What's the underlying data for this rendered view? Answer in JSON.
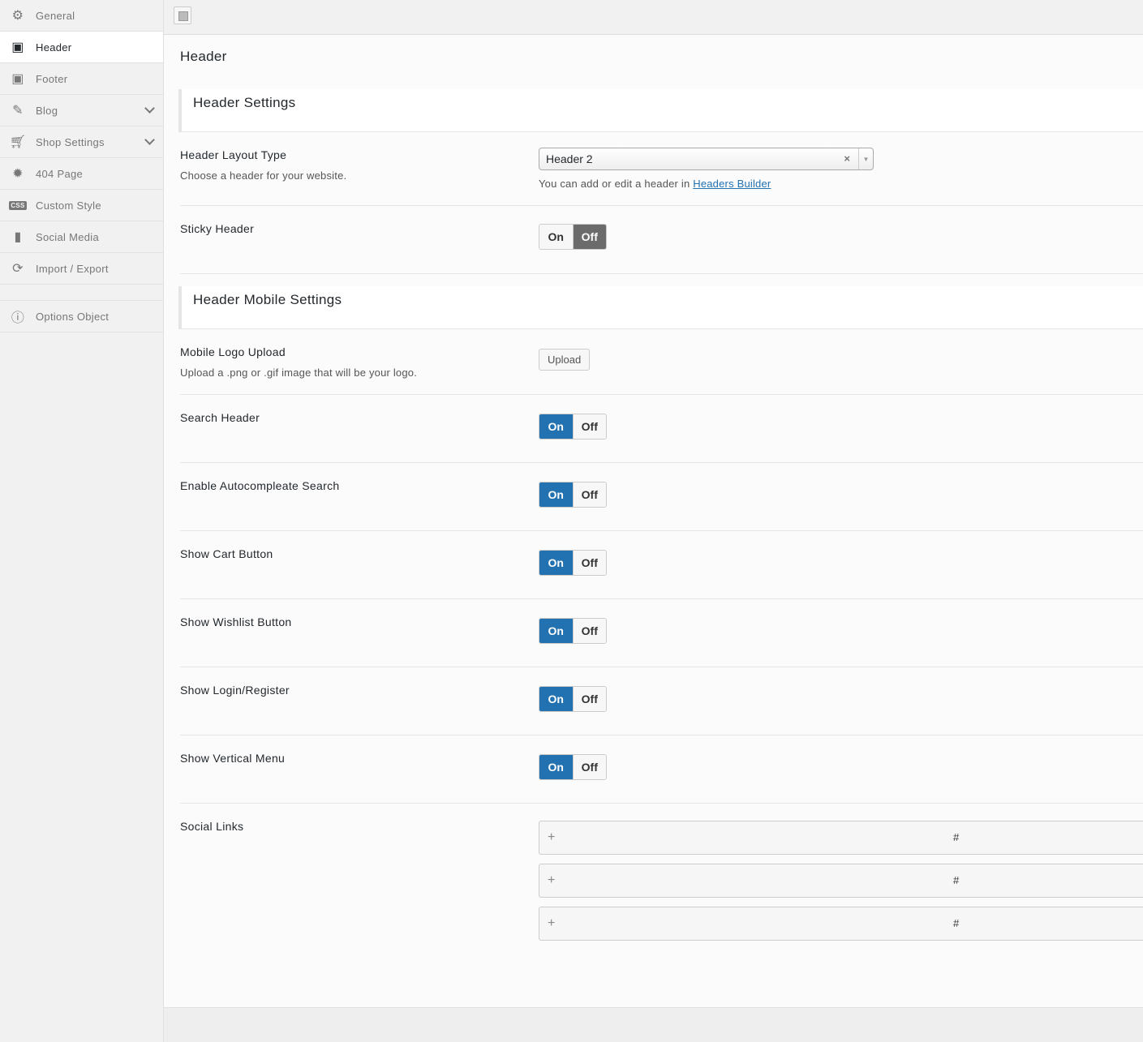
{
  "sidebar": {
    "items": [
      {
        "label": "General",
        "icon": "gears-icon"
      },
      {
        "label": "Header",
        "icon": "header-layout-icon",
        "active": true
      },
      {
        "label": "Footer",
        "icon": "footer-layout-icon"
      },
      {
        "label": "Blog",
        "icon": "pencil-icon",
        "expandable": true
      },
      {
        "label": "Shop Settings",
        "icon": "cart-icon",
        "expandable": true
      },
      {
        "label": "404 Page",
        "icon": "gear-icon"
      },
      {
        "label": "Custom Style",
        "icon": "css-icon"
      },
      {
        "label": "Social Media",
        "icon": "file-icon"
      },
      {
        "label": "Import / Export",
        "icon": "refresh-icon"
      }
    ],
    "options_object": {
      "label": "Options Object",
      "icon": "info-icon"
    }
  },
  "page_title": "Header",
  "sections": {
    "header_settings": "Header Settings",
    "mobile_settings": "Header Mobile Settings"
  },
  "layout": {
    "label": "Header Layout Type",
    "desc": "Choose a header for your website.",
    "value": "Header 2",
    "clear": "×",
    "arrow": "▼",
    "hint": "You can add or edit a header in ",
    "link": "Headers Builder"
  },
  "toggle": {
    "on": "On",
    "off": "Off"
  },
  "sticky": {
    "label": "Sticky Header",
    "state": "off"
  },
  "mobile_logo": {
    "label": "Mobile Logo Upload",
    "desc": "Upload a .png or .gif image that will be your logo.",
    "button": "Upload"
  },
  "toggles": [
    {
      "label": "Search Header",
      "state": "on"
    },
    {
      "label": "Enable Autocompleate Search",
      "state": "on"
    },
    {
      "label": "Show Cart Button",
      "state": "on"
    },
    {
      "label": "Show Wishlist Button",
      "state": "on"
    },
    {
      "label": "Show Login/Register",
      "state": "on"
    },
    {
      "label": "Show Vertical Menu",
      "state": "on"
    }
  ],
  "social": {
    "label": "Social Links",
    "items": [
      {
        "plus": "+",
        "value": "#"
      },
      {
        "plus": "+",
        "value": "#"
      },
      {
        "plus": "+",
        "value": "#"
      }
    ]
  },
  "colors": {
    "accent": "#2271b1",
    "off_active": "#6b6b6b"
  }
}
